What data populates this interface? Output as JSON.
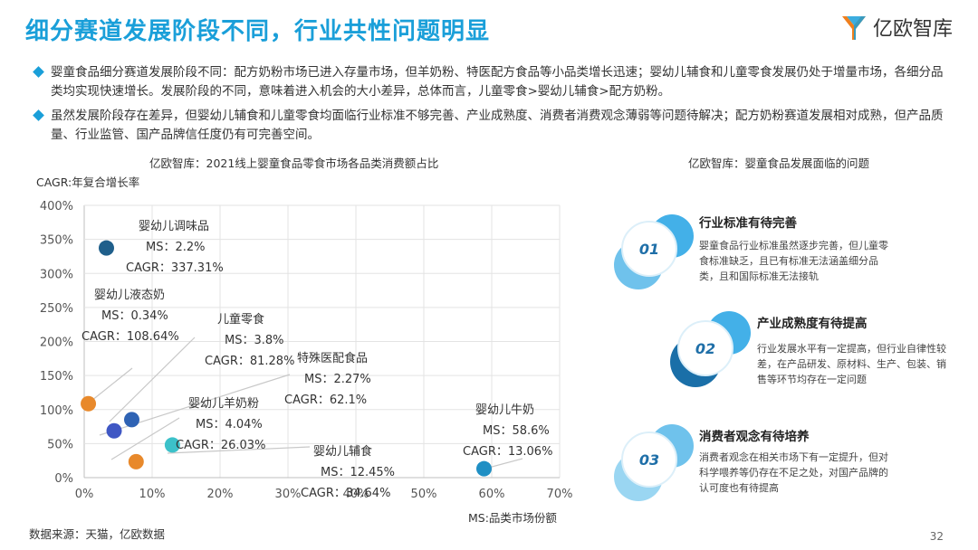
{
  "header": {
    "title": "细分赛道发展阶段不同，行业共性问题明显",
    "logo_text": "亿欧智库"
  },
  "bullets": [
    "婴童食品细分赛道发展阶段不同：配方奶粉市场已进入存量市场，但羊奶粉、特医配方食品等小品类增长迅速；婴幼儿辅食和儿童零食发展仍处于增量市场，各细分品类均实现快速增长。发展阶段的不同，意味着进入机会的大小差异，总体而言，儿童零食>婴幼儿辅食>配方奶粉。",
    "虽然发展阶段存在差异，但婴幼儿辅食和儿童零食均面临行业标准不够完善、产业成熟度、消费者消费观念薄弱等问题待解决；配方奶粉赛道发展相对成熟，但产品质量、行业监管、国产品牌信任度仍有可完善空间。"
  ],
  "chart_data": {
    "type": "scatter",
    "title": "亿欧智库：2021线上婴童食品零食市场各品类消费额占比",
    "ylabel": "CAGR:年复合增长率",
    "xlabel": "MS:品类市场份额",
    "xlim": [
      0,
      70
    ],
    "ylim": [
      0,
      400
    ],
    "xticks": [
      "0%",
      "10%",
      "20%",
      "30%",
      "40%",
      "50%",
      "60%",
      "70%"
    ],
    "yticks": [
      "0%",
      "50%",
      "100%",
      "150%",
      "200%",
      "250%",
      "300%",
      "350%",
      "400%"
    ],
    "points": [
      {
        "name": "婴幼儿调味品",
        "ms_label": "MS：2.2%",
        "cagr_label": "CAGR：337.31%",
        "x": 2.2,
        "y": 337.31,
        "color": "#1f5f8b"
      },
      {
        "name": "婴幼儿液态奶",
        "ms_label": "MS：0.34%",
        "cagr_label": "CAGR：108.64%",
        "x": 0.34,
        "y": 108.64,
        "color": "#e8892b"
      },
      {
        "name": "儿童零食",
        "ms_label": "MS：3.8%",
        "cagr_label": "CAGR：81.28%",
        "x": 3.8,
        "y": 81.28,
        "color": "#2f63b4"
      },
      {
        "name": "特殊医配食品",
        "ms_label": "MS：2.27%",
        "cagr_label": "CAGR：62.1%",
        "x": 2.27,
        "y": 62.1,
        "color": "#3f57c4"
      },
      {
        "name": "婴幼儿羊奶粉",
        "ms_label": "MS：4.04%",
        "cagr_label": "CAGR：26.03%",
        "x": 4.04,
        "y": 26.03,
        "color": "#e8892b"
      },
      {
        "name": "婴幼儿辅食",
        "ms_label": "MS：12.45%",
        "cagr_label": "CAGR：34.64%",
        "x": 12.45,
        "y": 34.64,
        "color": "#3cc1c9"
      },
      {
        "name": "婴幼儿牛奶",
        "ms_label": "MS：58.6%",
        "cagr_label": "CAGR：13.06%",
        "x": 58.6,
        "y": 13.06,
        "color": "#1f8fc4"
      }
    ]
  },
  "issues": {
    "title": "亿欧智库：婴童食品发展面临的问题",
    "items": [
      {
        "num": "01",
        "title": "行业标准有待完善",
        "desc": "婴童食品行业标准虽然逐步完善，但儿童零食标准缺乏，且已有标准无法涵盖细分品类，且和国际标准无法接轨"
      },
      {
        "num": "02",
        "title": "产业成熟度有待提高",
        "desc": "行业发展水平有一定提高，但行业自律性较差，在产品研发、原材料、生产、包装、销售等环节均存在一定问题"
      },
      {
        "num": "03",
        "title": "消费者观念有待培养",
        "desc": "消费者观念在相关市场下有一定提升，但对科学喂养等仍存在不足之处，对国产品牌的认可度也有待提高"
      }
    ]
  },
  "footer": {
    "source": "数据来源：天猫，亿欧数据",
    "page": "32"
  }
}
